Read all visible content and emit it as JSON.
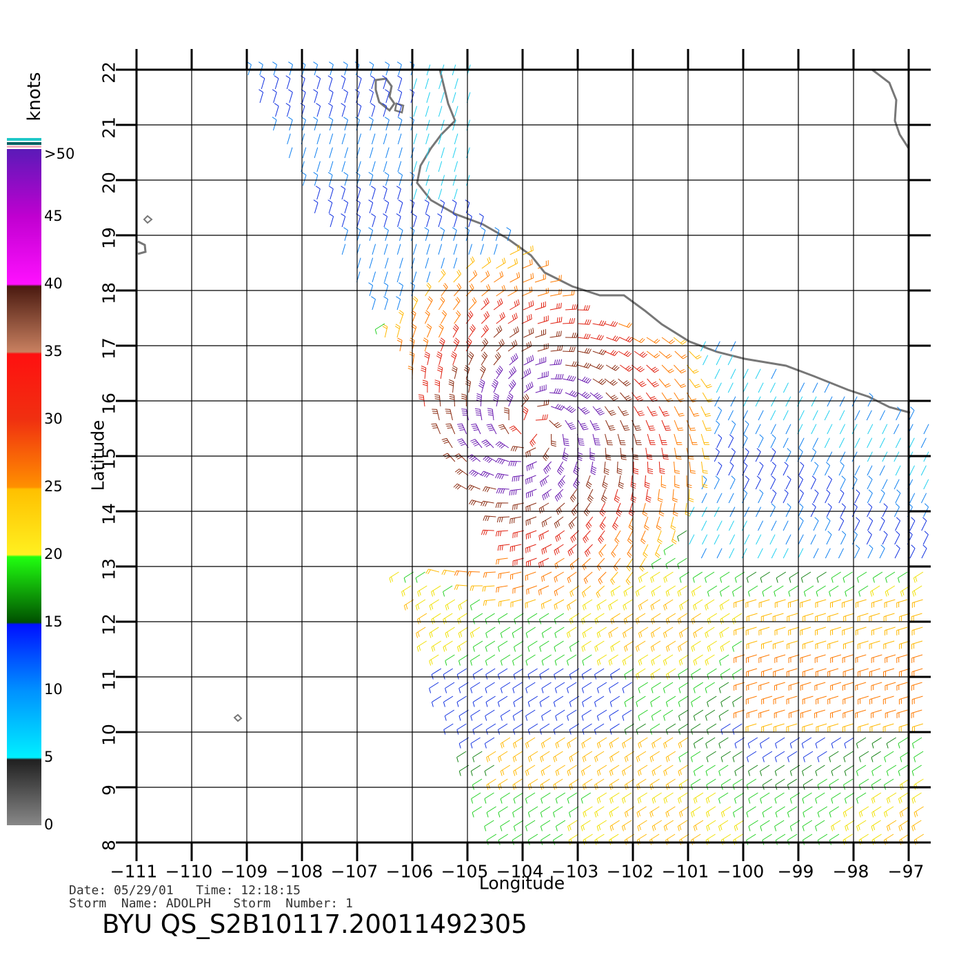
{
  "colorbar": {
    "unit_label": "knots",
    "tick_labels": [
      ">50",
      "45",
      "40",
      "35",
      "30",
      "25",
      "20",
      "15",
      "10",
      "5",
      "0"
    ],
    "tick_values": [
      50,
      45,
      40,
      35,
      30,
      25,
      20,
      15,
      10,
      5,
      0
    ]
  },
  "axes": {
    "xlabel": "Longitude",
    "ylabel": "Latitude",
    "lon_ticks": [
      "−111",
      "−110",
      "−109",
      "−108",
      "−107",
      "−106",
      "−105",
      "−104",
      "−103",
      "−102",
      "−101",
      "−100",
      "−99",
      "−98",
      "−97"
    ],
    "lat_ticks": [
      "8",
      "9",
      "10",
      "11",
      "12",
      "13",
      "14",
      "15",
      "16",
      "17",
      "18",
      "19",
      "20",
      "21",
      "22"
    ]
  },
  "meta": {
    "line1": "Date: 05/29/01   Time: 12:18:15",
    "line2": "Storm  Name: ADOLPH   Storm  Number: 1"
  },
  "product_id": "BYU  QS_S2B10117.20011492305",
  "chart_data": {
    "type": "wind barb map",
    "title": "BYU  QS_S2B10117.20011492305",
    "xlabel": "Longitude",
    "ylabel": "Latitude",
    "xlim": [
      -111,
      -97
    ],
    "ylim": [
      8,
      22
    ],
    "storm_name": "ADOLPH",
    "storm_number": 1,
    "date": "05/29/01",
    "time": "12:18:15",
    "speed_unit": "knots",
    "speed_range": [
      0,
      50
    ],
    "storm_center_approx": {
      "lon": -103.8,
      "lat": 15.5,
      "max_speed_kt": 45
    }
  }
}
